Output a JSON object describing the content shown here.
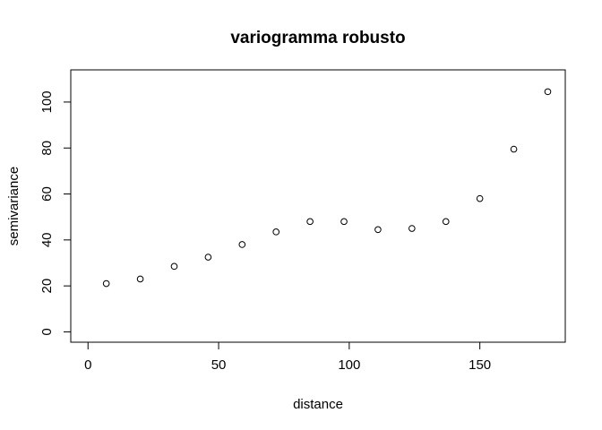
{
  "chart_data": {
    "type": "scatter",
    "title": "variogramma robusto",
    "xlabel": "distance",
    "ylabel": "semivariance",
    "xlim": [
      -6.6,
      182.7
    ],
    "ylim": [
      -4.5,
      114
    ],
    "xticks": [
      0,
      50,
      100,
      150
    ],
    "yticks": [
      0,
      20,
      40,
      60,
      80,
      100
    ],
    "grid": false,
    "legend": "none",
    "marker": "open-circle",
    "colors": {
      "points": "#000000",
      "axes": "#000000",
      "background": "#ffffff"
    },
    "points": [
      {
        "x": 7,
        "y": 21
      },
      {
        "x": 20,
        "y": 23
      },
      {
        "x": 33,
        "y": 28.5
      },
      {
        "x": 46,
        "y": 32.5
      },
      {
        "x": 59,
        "y": 38
      },
      {
        "x": 72,
        "y": 43.5
      },
      {
        "x": 85,
        "y": 48
      },
      {
        "x": 98,
        "y": 48
      },
      {
        "x": 111,
        "y": 44.5
      },
      {
        "x": 124,
        "y": 45
      },
      {
        "x": 137,
        "y": 48
      },
      {
        "x": 150,
        "y": 58
      },
      {
        "x": 163,
        "y": 79.5
      },
      {
        "x": 176,
        "y": 104.5
      }
    ]
  }
}
